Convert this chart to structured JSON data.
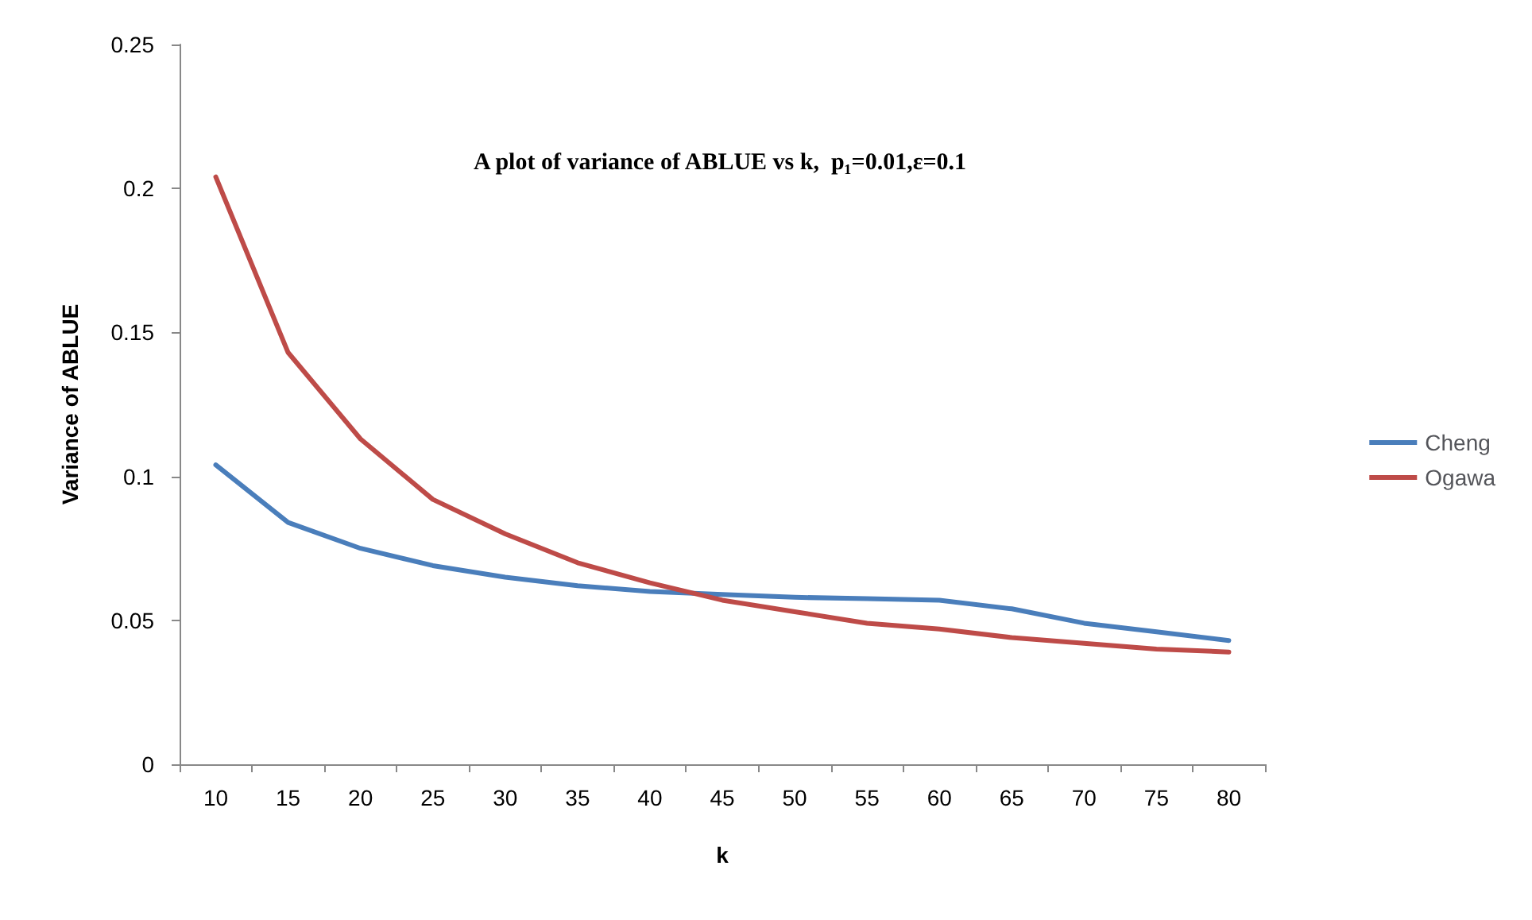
{
  "chart_data": {
    "type": "line",
    "title": "A plot of variance of ABLUE vs k,  p₁=0.01,ε=0.1",
    "xlabel": "k",
    "ylabel": "Variance of ABLUE",
    "categories": [
      "10",
      "15",
      "20",
      "25",
      "30",
      "35",
      "40",
      "45",
      "50",
      "55",
      "60",
      "65",
      "70",
      "75",
      "80"
    ],
    "series": [
      {
        "name": "Cheng",
        "color": "#4a7ebb",
        "values": [
          0.104,
          0.084,
          0.075,
          0.069,
          0.065,
          0.062,
          0.06,
          0.059,
          0.058,
          0.0575,
          0.057,
          0.054,
          0.049,
          0.046,
          0.043
        ]
      },
      {
        "name": "Ogawa",
        "color": "#be4b48",
        "values": [
          0.204,
          0.143,
          0.113,
          0.092,
          0.08,
          0.07,
          0.063,
          0.057,
          0.053,
          0.049,
          0.047,
          0.044,
          0.042,
          0.04,
          0.039
        ]
      }
    ],
    "ylim": [
      0,
      0.25
    ],
    "yticks": [
      0,
      0.05,
      0.1,
      0.15,
      0.2,
      0.25
    ],
    "grid": false,
    "legend": "right",
    "marker": "none",
    "line_style": "solid"
  }
}
